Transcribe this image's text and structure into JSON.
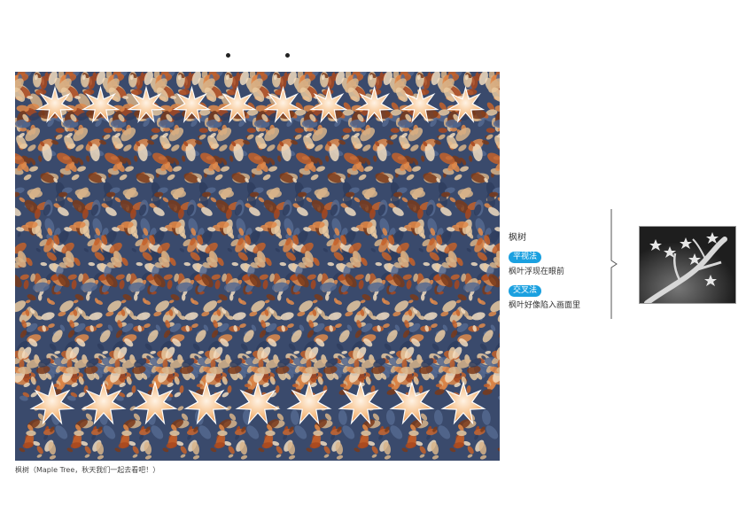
{
  "caption": "枫树（Maple Tree，秋天我们一起去看吧！）",
  "legend": {
    "title": "枫树",
    "method1_label": "平视法",
    "method1_desc": "枫叶浮现在眼前",
    "method2_label": "交叉法",
    "method2_desc": "枫叶好像陷入画面里"
  },
  "colors": {
    "badge": "#1aa0e0",
    "leaf_orange": "#c4622a",
    "leaf_cream": "#f1dcc0",
    "background_blue": "#3a4a6c",
    "star_fill": "#f6c08a"
  },
  "icons": [
    "guide-dot",
    "maple-leaf-star",
    "tree-silhouette"
  ]
}
